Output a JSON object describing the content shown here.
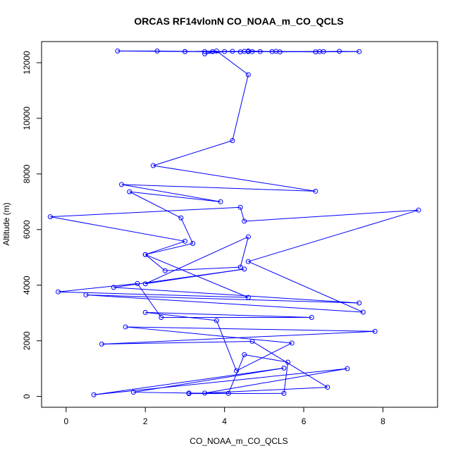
{
  "chart_data": {
    "type": "line",
    "title": "ORCAS RF14vlonN CO_NOAA_m_CO_QCLS",
    "xlabel": "CO_NOAA_m_CO_QCLS",
    "ylabel": "Altitude (m)",
    "xlim": [
      -0.62,
      9.38
    ],
    "ylim": [
      -390,
      12760
    ],
    "xticks": [
      0,
      2,
      4,
      6,
      8
    ],
    "yticks": [
      0,
      2000,
      4000,
      6000,
      8000,
      10000,
      12000
    ],
    "line_color": "#0000ff",
    "grid": false,
    "series": [
      {
        "marker": "open-circle",
        "points": [
          [
            3.0,
            12400
          ],
          [
            1.3,
            12420
          ],
          [
            2.3,
            12420
          ],
          [
            3.5,
            12400
          ],
          [
            4.2,
            12410
          ],
          [
            4.4,
            12390
          ],
          [
            4.5,
            12410
          ],
          [
            4.7,
            12400
          ],
          [
            4.9,
            12400
          ],
          [
            5.3,
            12410
          ],
          [
            5.4,
            12390
          ],
          [
            6.4,
            12400
          ],
          [
            6.9,
            12410
          ],
          [
            7.4,
            12400
          ],
          [
            6.3,
            12390
          ],
          [
            5.2,
            12400
          ],
          [
            4.6,
            12420
          ],
          [
            4.6,
            12400
          ],
          [
            3.7,
            12400
          ],
          [
            3.5,
            12320
          ],
          [
            4.0,
            12400
          ],
          [
            6.5,
            12400
          ],
          [
            3.0,
            12400
          ],
          [
            3.8,
            12420
          ],
          [
            4.6,
            11570
          ],
          [
            4.2,
            9200
          ],
          [
            2.2,
            8300
          ],
          [
            6.3,
            7380
          ],
          [
            1.4,
            7620
          ],
          [
            3.9,
            7000
          ],
          [
            1.6,
            7360
          ],
          [
            2.9,
            6420
          ],
          [
            3.2,
            5500
          ],
          [
            2.0,
            5100
          ],
          [
            2.5,
            4520
          ],
          [
            4.4,
            4650
          ],
          [
            4.6,
            5740
          ],
          [
            2.0,
            4050
          ],
          [
            4.5,
            4580
          ],
          [
            1.2,
            3920
          ],
          [
            7.4,
            3360
          ],
          [
            0.5,
            3650
          ],
          [
            7.5,
            3030
          ],
          [
            4.6,
            4850
          ],
          [
            8.9,
            6700
          ],
          [
            4.5,
            6300
          ],
          [
            4.4,
            6800
          ],
          [
            -0.4,
            6460
          ],
          [
            3.0,
            5580
          ],
          [
            2.0,
            5100
          ],
          [
            4.6,
            3560
          ],
          [
            -0.2,
            3760
          ],
          [
            1.8,
            4060
          ],
          [
            2.4,
            2840
          ],
          [
            6.2,
            2840
          ],
          [
            2.0,
            3020
          ],
          [
            3.8,
            2730
          ],
          [
            4.3,
            920
          ],
          [
            5.7,
            1920
          ],
          [
            1.5,
            2500
          ],
          [
            7.8,
            2340
          ],
          [
            0.9,
            1880
          ],
          [
            4.7,
            1980
          ],
          [
            6.6,
            330
          ],
          [
            3.5,
            120
          ],
          [
            7.1,
            1000
          ],
          [
            0.7,
            60
          ],
          [
            5.5,
            1020
          ],
          [
            1.7,
            150
          ],
          [
            3.1,
            120
          ],
          [
            4.1,
            110
          ],
          [
            4.5,
            1500
          ],
          [
            5.6,
            1230
          ],
          [
            5.5,
            110
          ],
          [
            3.1,
            100
          ]
        ]
      }
    ]
  }
}
